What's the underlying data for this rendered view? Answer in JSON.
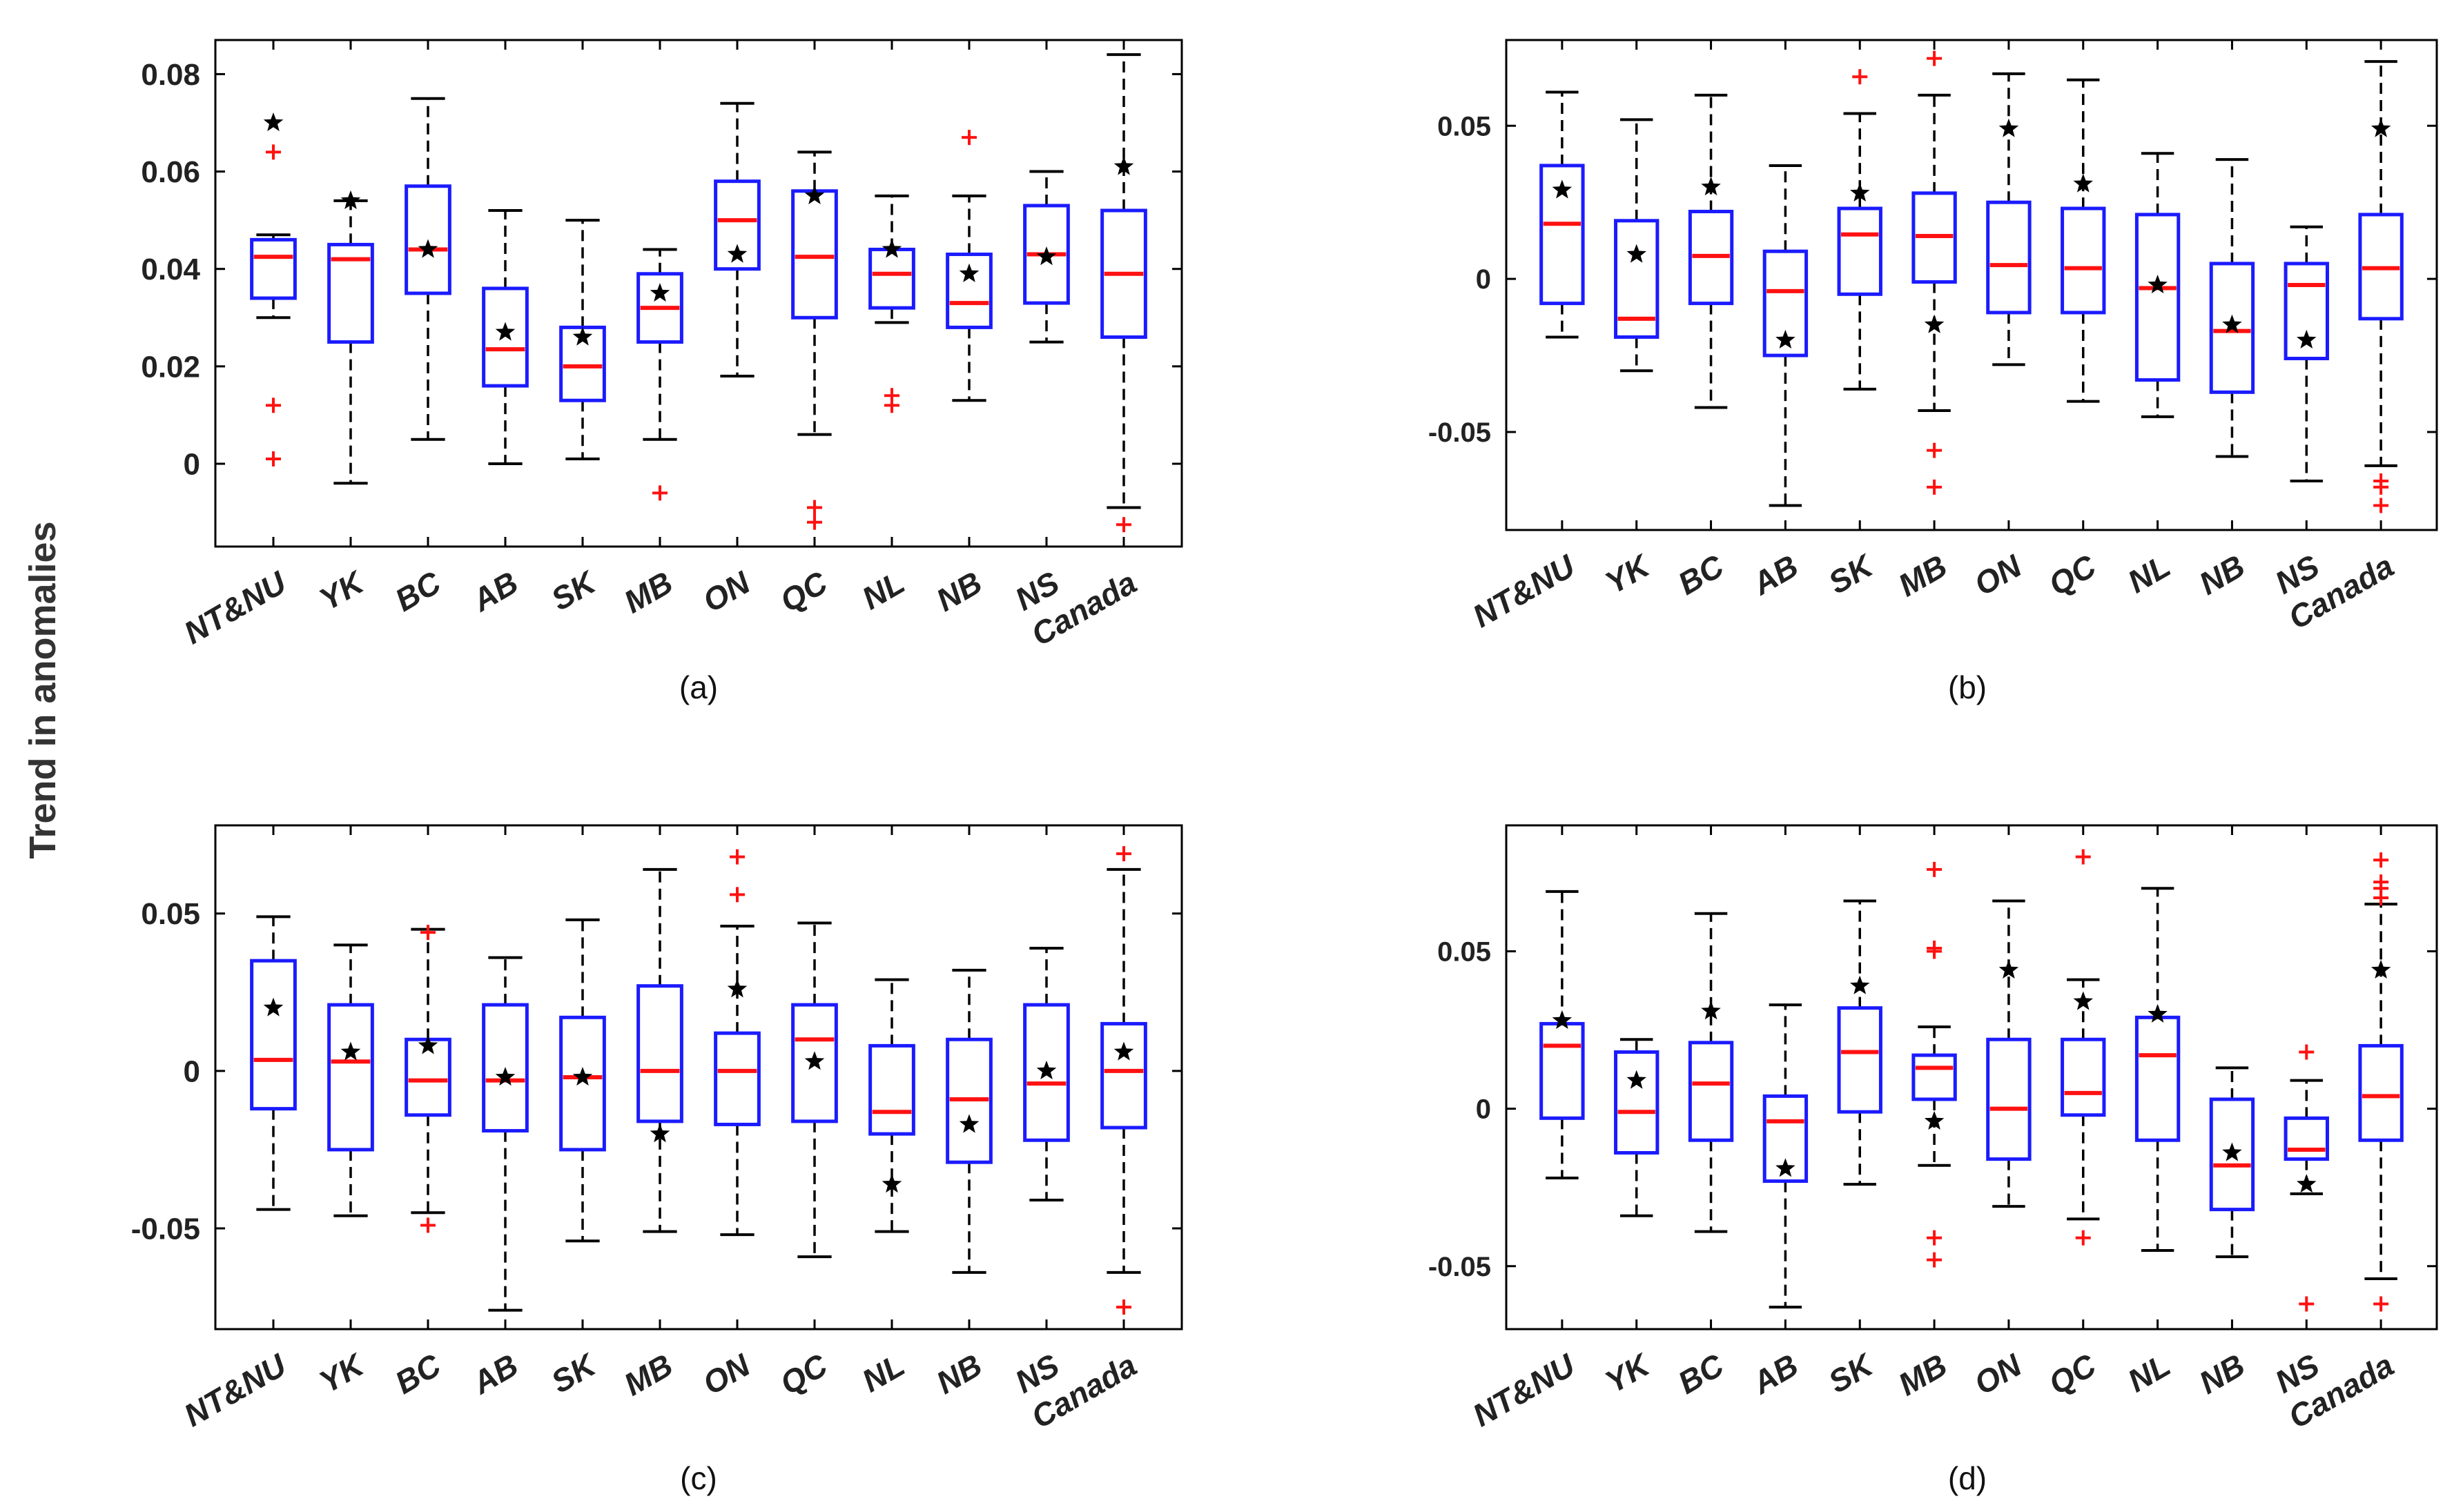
{
  "figure": {
    "ylabel": "Trend in anomalies"
  },
  "colors": {
    "box": "#1b1bff",
    "median": "#ff1111",
    "whisker": "#000000",
    "outlier": "#ff1111",
    "mean": "#000000",
    "axis": "#000000"
  },
  "chart_data": [
    {
      "type": "box",
      "panel_label": "(a)",
      "categories": [
        "NT&NU",
        "YK",
        "BC",
        "AB",
        "SK",
        "MB",
        "ON",
        "QC",
        "NL",
        "NB",
        "NS",
        "Canada"
      ],
      "ylim": [
        -0.017,
        0.087
      ],
      "yticks": [
        0,
        0.02,
        0.04,
        0.06,
        0.08
      ],
      "ytick_labels": [
        "0",
        "0.02",
        "0.04",
        "0.06",
        "0.08"
      ],
      "boxes": [
        {
          "q1": 0.034,
          "median": 0.0425,
          "q3": 0.046,
          "whisker_low": 0.03,
          "whisker_high": 0.047,
          "mean": 0.07,
          "outliers": [
            0.064,
            0.012,
            0.001
          ]
        },
        {
          "q1": 0.025,
          "median": 0.042,
          "q3": 0.045,
          "whisker_low": -0.004,
          "whisker_high": 0.054,
          "mean": 0.054,
          "outliers": []
        },
        {
          "q1": 0.035,
          "median": 0.044,
          "q3": 0.057,
          "whisker_low": 0.005,
          "whisker_high": 0.075,
          "mean": 0.044,
          "outliers": []
        },
        {
          "q1": 0.016,
          "median": 0.0235,
          "q3": 0.036,
          "whisker_low": 0.0,
          "whisker_high": 0.052,
          "mean": 0.027,
          "outliers": []
        },
        {
          "q1": 0.013,
          "median": 0.02,
          "q3": 0.028,
          "whisker_low": 0.001,
          "whisker_high": 0.05,
          "mean": 0.026,
          "outliers": []
        },
        {
          "q1": 0.025,
          "median": 0.032,
          "q3": 0.039,
          "whisker_low": 0.005,
          "whisker_high": 0.044,
          "mean": 0.035,
          "outliers": [
            -0.006
          ]
        },
        {
          "q1": 0.04,
          "median": 0.05,
          "q3": 0.058,
          "whisker_low": 0.018,
          "whisker_high": 0.074,
          "mean": 0.043,
          "outliers": []
        },
        {
          "q1": 0.03,
          "median": 0.0425,
          "q3": 0.056,
          "whisker_low": 0.006,
          "whisker_high": 0.064,
          "mean": 0.055,
          "outliers": [
            -0.009,
            -0.012
          ]
        },
        {
          "q1": 0.032,
          "median": 0.039,
          "q3": 0.044,
          "whisker_low": 0.029,
          "whisker_high": 0.055,
          "mean": 0.044,
          "outliers": [
            0.014,
            0.012
          ]
        },
        {
          "q1": 0.028,
          "median": 0.033,
          "q3": 0.043,
          "whisker_low": 0.013,
          "whisker_high": 0.055,
          "mean": 0.039,
          "outliers": [
            0.067
          ]
        },
        {
          "q1": 0.033,
          "median": 0.043,
          "q3": 0.053,
          "whisker_low": 0.025,
          "whisker_high": 0.06,
          "mean": 0.0425,
          "outliers": []
        },
        {
          "q1": 0.026,
          "median": 0.039,
          "q3": 0.052,
          "whisker_low": -0.009,
          "whisker_high": 0.084,
          "mean": 0.061,
          "outliers": [
            -0.0125
          ]
        }
      ]
    },
    {
      "type": "box",
      "panel_label": "(b)",
      "categories": [
        "NT&NU",
        "YK",
        "BC",
        "AB",
        "SK",
        "MB",
        "ON",
        "QC",
        "NL",
        "NB",
        "NS",
        "Canada"
      ],
      "ylim": [
        -0.082,
        0.078
      ],
      "yticks": [
        -0.05,
        0,
        0.05
      ],
      "ytick_labels": [
        "-0.05",
        "0",
        "0.05"
      ],
      "boxes": [
        {
          "q1": -0.008,
          "median": 0.018,
          "q3": 0.037,
          "whisker_low": -0.019,
          "whisker_high": 0.061,
          "mean": 0.029,
          "outliers": []
        },
        {
          "q1": -0.019,
          "median": -0.013,
          "q3": 0.019,
          "whisker_low": -0.03,
          "whisker_high": 0.052,
          "mean": 0.008,
          "outliers": []
        },
        {
          "q1": -0.008,
          "median": 0.0075,
          "q3": 0.022,
          "whisker_low": -0.042,
          "whisker_high": 0.06,
          "mean": 0.03,
          "outliers": []
        },
        {
          "q1": -0.025,
          "median": -0.004,
          "q3": 0.009,
          "whisker_low": -0.074,
          "whisker_high": 0.037,
          "mean": -0.02,
          "outliers": []
        },
        {
          "q1": -0.005,
          "median": 0.0145,
          "q3": 0.023,
          "whisker_low": -0.036,
          "whisker_high": 0.054,
          "mean": 0.028,
          "outliers": [
            0.066
          ]
        },
        {
          "q1": -0.001,
          "median": 0.014,
          "q3": 0.028,
          "whisker_low": -0.043,
          "whisker_high": 0.06,
          "mean": -0.015,
          "outliers": [
            0.072,
            -0.056,
            -0.068
          ]
        },
        {
          "q1": -0.011,
          "median": 0.0045,
          "q3": 0.025,
          "whisker_low": -0.028,
          "whisker_high": 0.067,
          "mean": 0.049,
          "outliers": []
        },
        {
          "q1": -0.011,
          "median": 0.0035,
          "q3": 0.023,
          "whisker_low": -0.04,
          "whisker_high": 0.065,
          "mean": 0.031,
          "outliers": []
        },
        {
          "q1": -0.033,
          "median": -0.003,
          "q3": 0.021,
          "whisker_low": -0.045,
          "whisker_high": 0.041,
          "mean": -0.002,
          "outliers": []
        },
        {
          "q1": -0.037,
          "median": -0.017,
          "q3": 0.005,
          "whisker_low": -0.058,
          "whisker_high": 0.039,
          "mean": -0.015,
          "outliers": []
        },
        {
          "q1": -0.026,
          "median": -0.002,
          "q3": 0.005,
          "whisker_low": -0.066,
          "whisker_high": 0.017,
          "mean": -0.02,
          "outliers": []
        },
        {
          "q1": -0.013,
          "median": 0.0035,
          "q3": 0.021,
          "whisker_low": -0.061,
          "whisker_high": 0.071,
          "mean": 0.049,
          "outliers": [
            -0.066,
            -0.068,
            -0.074
          ]
        }
      ]
    },
    {
      "type": "box",
      "panel_label": "(c)",
      "categories": [
        "NT&NU",
        "YK",
        "BC",
        "AB",
        "SK",
        "MB",
        "ON",
        "QC",
        "NL",
        "NB",
        "NS",
        "Canada"
      ],
      "ylim": [
        -0.082,
        0.078
      ],
      "yticks": [
        -0.05,
        0,
        0.05
      ],
      "ytick_labels": [
        "-0.05",
        "0",
        "0.05"
      ],
      "boxes": [
        {
          "q1": -0.012,
          "median": 0.0035,
          "q3": 0.035,
          "whisker_low": -0.044,
          "whisker_high": 0.049,
          "mean": 0.02,
          "outliers": []
        },
        {
          "q1": -0.025,
          "median": 0.003,
          "q3": 0.021,
          "whisker_low": -0.046,
          "whisker_high": 0.04,
          "mean": 0.006,
          "outliers": []
        },
        {
          "q1": -0.014,
          "median": -0.003,
          "q3": 0.01,
          "whisker_low": -0.045,
          "whisker_high": 0.045,
          "mean": 0.008,
          "outliers": [
            0.044,
            -0.049
          ]
        },
        {
          "q1": -0.019,
          "median": -0.003,
          "q3": 0.021,
          "whisker_low": -0.076,
          "whisker_high": 0.036,
          "mean": -0.002,
          "outliers": []
        },
        {
          "q1": -0.025,
          "median": -0.002,
          "q3": 0.017,
          "whisker_low": -0.054,
          "whisker_high": 0.048,
          "mean": -0.002,
          "outliers": []
        },
        {
          "q1": -0.016,
          "median": 0.0,
          "q3": 0.027,
          "whisker_low": -0.051,
          "whisker_high": 0.064,
          "mean": -0.02,
          "outliers": []
        },
        {
          "q1": -0.017,
          "median": 0.0,
          "q3": 0.012,
          "whisker_low": -0.052,
          "whisker_high": 0.046,
          "mean": 0.026,
          "outliers": [
            0.068,
            0.056
          ]
        },
        {
          "q1": -0.016,
          "median": 0.01,
          "q3": 0.021,
          "whisker_low": -0.059,
          "whisker_high": 0.047,
          "mean": 0.003,
          "outliers": []
        },
        {
          "q1": -0.02,
          "median": -0.013,
          "q3": 0.008,
          "whisker_low": -0.051,
          "whisker_high": 0.029,
          "mean": -0.036,
          "outliers": []
        },
        {
          "q1": -0.029,
          "median": -0.009,
          "q3": 0.01,
          "whisker_low": -0.064,
          "whisker_high": 0.032,
          "mean": -0.017,
          "outliers": []
        },
        {
          "q1": -0.022,
          "median": -0.004,
          "q3": 0.021,
          "whisker_low": -0.041,
          "whisker_high": 0.039,
          "mean": 0.0,
          "outliers": []
        },
        {
          "q1": -0.018,
          "median": 0.0,
          "q3": 0.015,
          "whisker_low": -0.064,
          "whisker_high": 0.064,
          "mean": 0.006,
          "outliers": [
            0.069,
            -0.075
          ]
        }
      ]
    },
    {
      "type": "box",
      "panel_label": "(d)",
      "categories": [
        "NT&NU",
        "YK",
        "BC",
        "AB",
        "SK",
        "MB",
        "ON",
        "QC",
        "NL",
        "NB",
        "NS",
        "Canada"
      ],
      "ylim": [
        -0.07,
        0.09
      ],
      "yticks": [
        -0.05,
        0,
        0.05
      ],
      "ytick_labels": [
        "-0.05",
        "0",
        "0.05"
      ],
      "boxes": [
        {
          "q1": -0.003,
          "median": 0.02,
          "q3": 0.027,
          "whisker_low": -0.022,
          "whisker_high": 0.069,
          "mean": 0.028,
          "outliers": []
        },
        {
          "q1": -0.014,
          "median": -0.001,
          "q3": 0.018,
          "whisker_low": -0.034,
          "whisker_high": 0.022,
          "mean": 0.009,
          "outliers": []
        },
        {
          "q1": -0.01,
          "median": 0.008,
          "q3": 0.021,
          "whisker_low": -0.039,
          "whisker_high": 0.062,
          "mean": 0.031,
          "outliers": []
        },
        {
          "q1": -0.023,
          "median": -0.004,
          "q3": 0.004,
          "whisker_low": -0.063,
          "whisker_high": 0.033,
          "mean": -0.019,
          "outliers": []
        },
        {
          "q1": -0.001,
          "median": 0.018,
          "q3": 0.032,
          "whisker_low": -0.024,
          "whisker_high": 0.066,
          "mean": 0.039,
          "outliers": []
        },
        {
          "q1": 0.003,
          "median": 0.013,
          "q3": 0.017,
          "whisker_low": -0.018,
          "whisker_high": 0.026,
          "mean": -0.004,
          "outliers": [
            0.076,
            0.051,
            0.05,
            -0.041,
            -0.048
          ]
        },
        {
          "q1": -0.016,
          "median": 0.0,
          "q3": 0.022,
          "whisker_low": -0.031,
          "whisker_high": 0.066,
          "mean": 0.044,
          "outliers": []
        },
        {
          "q1": -0.002,
          "median": 0.005,
          "q3": 0.022,
          "whisker_low": -0.035,
          "whisker_high": 0.041,
          "mean": 0.034,
          "outliers": [
            0.08,
            -0.041
          ]
        },
        {
          "q1": -0.01,
          "median": 0.017,
          "q3": 0.029,
          "whisker_low": -0.045,
          "whisker_high": 0.07,
          "mean": 0.03,
          "outliers": []
        },
        {
          "q1": -0.032,
          "median": -0.018,
          "q3": 0.003,
          "whisker_low": -0.047,
          "whisker_high": 0.013,
          "mean": -0.014,
          "outliers": []
        },
        {
          "q1": -0.016,
          "median": -0.013,
          "q3": -0.003,
          "whisker_low": -0.027,
          "whisker_high": 0.009,
          "mean": -0.024,
          "outliers": [
            0.018,
            -0.062
          ]
        },
        {
          "q1": -0.01,
          "median": 0.004,
          "q3": 0.02,
          "whisker_low": -0.054,
          "whisker_high": 0.065,
          "mean": 0.044,
          "outliers": [
            0.079,
            0.072,
            0.07,
            0.067,
            -0.062
          ]
        }
      ]
    }
  ]
}
